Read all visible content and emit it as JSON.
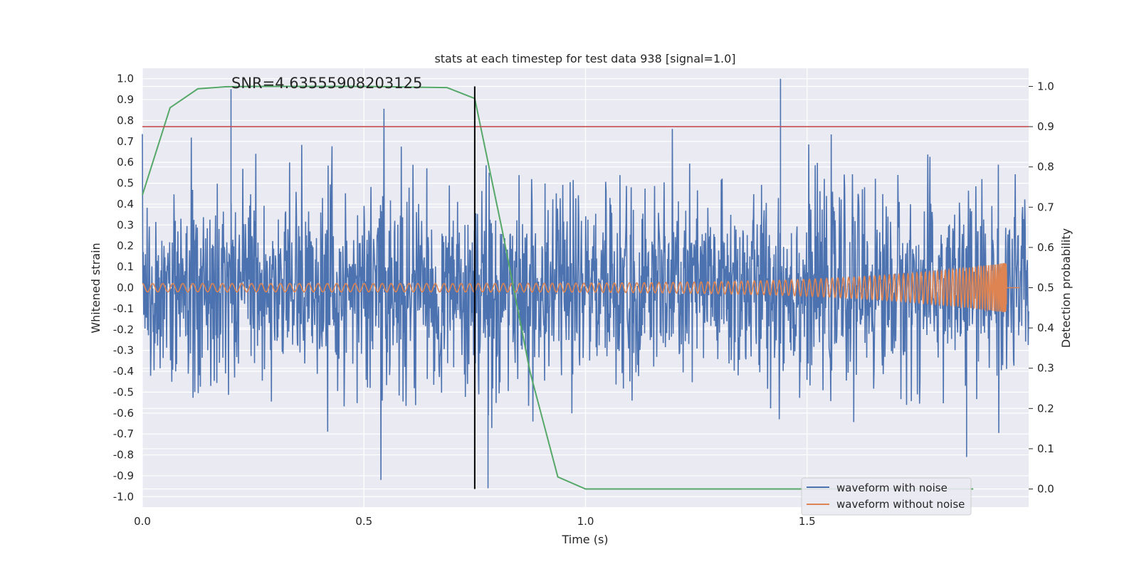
{
  "chart_data": {
    "type": "line",
    "title": "stats at each timestep for test data 938 [signal=1.0]",
    "annotation": "SNR=4.63555908203125",
    "xlabel": "Time (s)",
    "ylabel": "Whitened strain",
    "y2label": "Detection probability",
    "xlim": [
      0.0,
      2.0
    ],
    "ylim": [
      -1.05,
      1.05
    ],
    "y2lim": [
      -0.045,
      1.045
    ],
    "x_ticks": [
      "0.0",
      "0.5",
      "1.0",
      "1.5"
    ],
    "y_ticks": [
      "-1.0",
      "-0.9",
      "-0.8",
      "-0.7",
      "-0.6",
      "-0.5",
      "-0.4",
      "-0.3",
      "-0.2",
      "-0.1",
      "0.0",
      "0.1",
      "0.2",
      "0.3",
      "0.4",
      "0.5",
      "0.6",
      "0.7",
      "0.8",
      "0.9",
      "1.0"
    ],
    "y2_ticks": [
      "0.0",
      "0.1",
      "0.2",
      "0.3",
      "0.4",
      "0.5",
      "0.6",
      "0.7",
      "0.8",
      "0.9",
      "1.0"
    ],
    "grid": true,
    "legend_position": "lower-right",
    "threshold_line": {
      "y2": 0.9,
      "color": "#c44e52"
    },
    "vertical_marker": {
      "x": 0.75,
      "color": "#000000"
    },
    "series": [
      {
        "name": "waveform with noise",
        "color": "#4c72b0",
        "axis": "left",
        "x_range": [
          0.0,
          2.0
        ],
        "num_samples": 2048,
        "amplitude_range": [
          -0.96,
          1.0
        ],
        "description_peaks": {
          "0.2": 0.95,
          "1.44": 1.0,
          "0.78": -0.96,
          "1.86": -0.81
        }
      },
      {
        "name": "waveform without noise",
        "color": "#dd8452",
        "axis": "left",
        "x_range": [
          0.0,
          1.98
        ],
        "amplitude_start": 0.02,
        "amplitude_end": 0.12,
        "chirp_end_time": 1.95
      },
      {
        "color": "#55a868",
        "axis": "right",
        "x": [
          0.0,
          0.0625,
          0.125,
          0.1875,
          0.25,
          0.3125,
          0.375,
          0.4375,
          0.5,
          0.5625,
          0.625,
          0.6875,
          0.75,
          0.8125,
          0.875,
          0.9375,
          1.0,
          1.0625,
          1.125,
          1.1875,
          1.25,
          1.3125,
          1.375,
          1.4375,
          1.5,
          1.5625,
          1.625,
          1.6875,
          1.75,
          1.8125,
          1.875
        ],
        "values": [
          0.73,
          0.947,
          0.994,
          0.999,
          1.0,
          1.0,
          1.0,
          1.0,
          1.0,
          0.999,
          0.998,
          0.997,
          0.97,
          0.64,
          0.29,
          0.03,
          0.0,
          0.0,
          0.0,
          0.0,
          0.0,
          0.0,
          0.0,
          0.0,
          0.0,
          0.0,
          0.0,
          0.0,
          0.0,
          0.0,
          0.0
        ]
      }
    ]
  }
}
